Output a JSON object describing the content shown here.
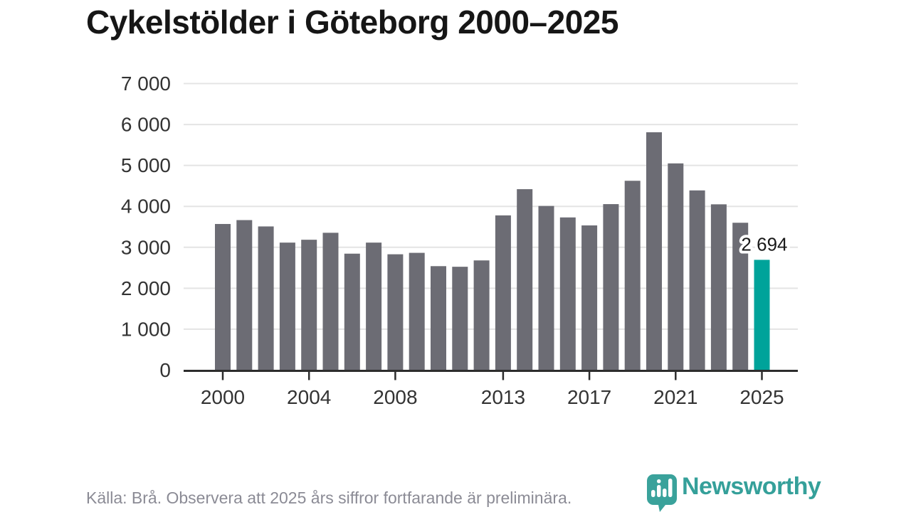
{
  "header": {
    "title": "Cykelstölder i Göteborg 2000–2025"
  },
  "footer": {
    "source_note": "Källa: Brå. Observera att 2025 års siffror fortfarande är preliminära."
  },
  "logo": {
    "text": "Newsworthy",
    "icon": "newsworthy-speech-bubble-bar-chart-icon"
  },
  "colors": {
    "bar": "#6c6c74",
    "highlight": "#00a39a",
    "axis": "#2d2d2d",
    "gridline": "#e4e4e4",
    "tick_label": "#333333",
    "annotation_text": "#1a1a1a",
    "annotation_halo": "#ffffff",
    "logo_teal": "#3aa29b",
    "logo_bars": "#ffffff"
  },
  "chart_data": {
    "type": "bar",
    "title": "Cykelstölder i Göteborg 2000–2025",
    "xlabel": "",
    "ylabel": "",
    "x": [
      2000,
      2001,
      2002,
      2003,
      2004,
      2005,
      2006,
      2007,
      2008,
      2009,
      2010,
      2011,
      2012,
      2013,
      2014,
      2015,
      2016,
      2017,
      2018,
      2019,
      2020,
      2021,
      2022,
      2023,
      2024,
      2025
    ],
    "values": [
      3570,
      3665,
      3510,
      3115,
      3185,
      3355,
      2845,
      3115,
      2830,
      2865,
      2540,
      2525,
      2680,
      3780,
      4420,
      4010,
      3730,
      3535,
      4055,
      4625,
      5810,
      5050,
      4390,
      4050,
      3600,
      2694
    ],
    "highlight_year": 2025,
    "highlight_label": "2 694",
    "ylim": [
      0,
      7000
    ],
    "grid": "horizontal",
    "legend": "none",
    "yticks": [
      {
        "value": 0,
        "label": "0"
      },
      {
        "value": 1000,
        "label": "1 000"
      },
      {
        "value": 2000,
        "label": "2 000"
      },
      {
        "value": 3000,
        "label": "3 000"
      },
      {
        "value": 4000,
        "label": "4 000"
      },
      {
        "value": 5000,
        "label": "5 000"
      },
      {
        "value": 6000,
        "label": "6 000"
      },
      {
        "value": 7000,
        "label": "7 000"
      }
    ],
    "xticks": [
      2000,
      2004,
      2008,
      2013,
      2017,
      2021,
      2025
    ]
  }
}
